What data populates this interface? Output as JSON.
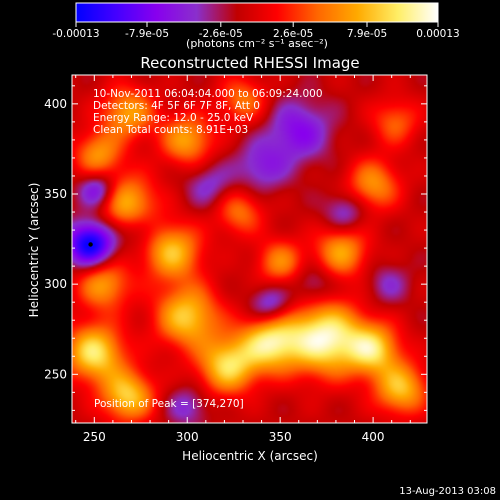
{
  "colorbar": {
    "tick_labels": [
      "-0.00013",
      "-7.9e-05",
      "-2.6e-05",
      "2.6e-05",
      "7.9e-05",
      "0.00013"
    ],
    "tick_values": [
      -0.00013,
      -7.9e-05,
      -2.6e-05,
      2.6e-05,
      7.9e-05,
      0.00013
    ],
    "range": [
      -0.00013,
      0.00013
    ],
    "units": "(photons cm⁻² s⁻¹ asec⁻²)",
    "colors": [
      "#0000ff",
      "#4400ff",
      "#8800ee",
      "#8a2fcc",
      "#c00000",
      "#ff0000",
      "#ff6600",
      "#ffaa00",
      "#ffee66",
      "#ffffff"
    ]
  },
  "chart_data": {
    "type": "heatmap",
    "title": "Reconstructed RHESSI Image",
    "xlabel": "Heliocentric X (arcsec)",
    "ylabel": "Heliocentric Y (arcsec)",
    "xlim": [
      238,
      429
    ],
    "ylim": [
      223,
      416
    ],
    "xticks": [
      250,
      300,
      350,
      400
    ],
    "yticks": [
      250,
      300,
      350,
      400
    ],
    "info": [
      "10-Nov-2011 06:04:04.000 to 06:09:24.000",
      "Detectors: 4F 5F 6F 7F 8F, Att 0",
      "Energy Range: 12.0 - 25.0 keV",
      "Clean    Total counts: 8.91E+03"
    ],
    "peak_label": "Position of Peak = [374,270]",
    "peak": [
      374,
      270
    ],
    "min_marker": [
      248,
      322
    ],
    "blobs": [
      {
        "x": 374,
        "y": 270,
        "v": 1.0,
        "r": 14
      },
      {
        "x": 345,
        "y": 268,
        "v": 0.85,
        "r": 11
      },
      {
        "x": 322,
        "y": 255,
        "v": 0.8,
        "r": 11
      },
      {
        "x": 400,
        "y": 264,
        "v": 0.75,
        "r": 10
      },
      {
        "x": 415,
        "y": 242,
        "v": 0.7,
        "r": 10
      },
      {
        "x": 250,
        "y": 262,
        "v": 0.85,
        "r": 11
      },
      {
        "x": 268,
        "y": 238,
        "v": 0.75,
        "r": 10
      },
      {
        "x": 300,
        "y": 282,
        "v": 0.75,
        "r": 12
      },
      {
        "x": 292,
        "y": 318,
        "v": 0.7,
        "r": 11
      },
      {
        "x": 255,
        "y": 300,
        "v": 0.6,
        "r": 10
      },
      {
        "x": 268,
        "y": 345,
        "v": 0.65,
        "r": 11
      },
      {
        "x": 300,
        "y": 380,
        "v": 0.6,
        "r": 10
      },
      {
        "x": 268,
        "y": 395,
        "v": 0.6,
        "r": 10
      },
      {
        "x": 252,
        "y": 372,
        "v": 0.55,
        "r": 9
      },
      {
        "x": 330,
        "y": 402,
        "v": 0.45,
        "r": 9
      },
      {
        "x": 400,
        "y": 355,
        "v": 0.55,
        "r": 10
      },
      {
        "x": 383,
        "y": 318,
        "v": 0.6,
        "r": 10
      },
      {
        "x": 350,
        "y": 312,
        "v": 0.5,
        "r": 9
      },
      {
        "x": 412,
        "y": 390,
        "v": 0.4,
        "r": 9
      },
      {
        "x": 328,
        "y": 340,
        "v": 0.45,
        "r": 9
      },
      {
        "x": 248,
        "y": 322,
        "v": -0.95,
        "r": 9
      },
      {
        "x": 252,
        "y": 352,
        "v": -0.55,
        "r": 7
      },
      {
        "x": 360,
        "y": 385,
        "v": -0.45,
        "r": 12
      },
      {
        "x": 340,
        "y": 365,
        "v": -0.35,
        "r": 10
      },
      {
        "x": 345,
        "y": 288,
        "v": -0.45,
        "r": 8
      },
      {
        "x": 368,
        "y": 300,
        "v": -0.3,
        "r": 8
      },
      {
        "x": 312,
        "y": 355,
        "v": -0.3,
        "r": 9
      },
      {
        "x": 385,
        "y": 340,
        "v": -0.35,
        "r": 8
      },
      {
        "x": 300,
        "y": 232,
        "v": -0.3,
        "r": 8
      },
      {
        "x": 408,
        "y": 300,
        "v": -0.25,
        "r": 8
      },
      {
        "x": 275,
        "y": 330,
        "v": -0.25,
        "r": 7
      }
    ]
  },
  "timestamp": "13-Aug-2013 03:08"
}
